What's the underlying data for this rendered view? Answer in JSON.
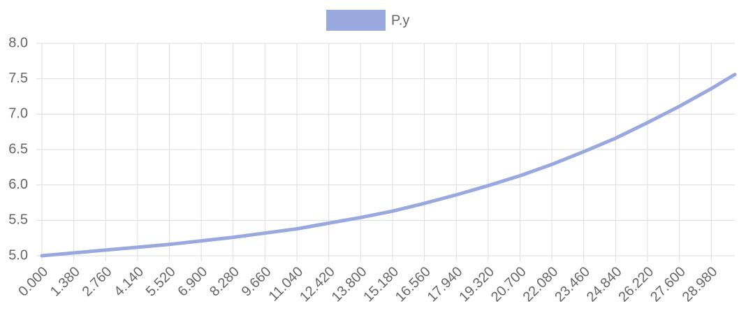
{
  "chart_data": {
    "type": "line",
    "x": [
      0,
      1.38,
      2.76,
      4.14,
      5.52,
      6.9,
      8.28,
      9.66,
      11.04,
      12.42,
      13.8,
      15.18,
      16.56,
      17.94,
      19.32,
      20.7,
      22.08,
      23.46,
      24.84,
      26.22,
      27.6,
      28.98,
      30
    ],
    "series": [
      {
        "name": "P.y",
        "color": "#99a9e0",
        "values": [
          5.0,
          5.04,
          5.08,
          5.12,
          5.16,
          5.21,
          5.26,
          5.32,
          5.38,
          5.46,
          5.54,
          5.63,
          5.74,
          5.86,
          5.99,
          6.13,
          6.29,
          6.47,
          6.66,
          6.88,
          7.11,
          7.36,
          7.56
        ]
      }
    ],
    "xlim": [
      0,
      30
    ],
    "ylim": [
      5,
      8
    ],
    "xticks": [
      {
        "value": 0,
        "label": "0.000"
      },
      {
        "value": 1.38,
        "label": "1.380"
      },
      {
        "value": 2.76,
        "label": "2.760"
      },
      {
        "value": 4.14,
        "label": "4.140"
      },
      {
        "value": 5.52,
        "label": "5.520"
      },
      {
        "value": 6.9,
        "label": "6.900"
      },
      {
        "value": 8.28,
        "label": "8.280"
      },
      {
        "value": 9.66,
        "label": "9.660"
      },
      {
        "value": 11.04,
        "label": "11.040"
      },
      {
        "value": 12.42,
        "label": "12.420"
      },
      {
        "value": 13.8,
        "label": "13.800"
      },
      {
        "value": 15.18,
        "label": "15.180"
      },
      {
        "value": 16.56,
        "label": "16.560"
      },
      {
        "value": 17.94,
        "label": "17.940"
      },
      {
        "value": 19.32,
        "label": "19.320"
      },
      {
        "value": 20.7,
        "label": "20.700"
      },
      {
        "value": 22.08,
        "label": "22.080"
      },
      {
        "value": 23.46,
        "label": "23.460"
      },
      {
        "value": 24.84,
        "label": "24.840"
      },
      {
        "value": 26.22,
        "label": "26.220"
      },
      {
        "value": 27.6,
        "label": "27.600"
      },
      {
        "value": 28.98,
        "label": "28.980"
      }
    ],
    "yticks": [
      {
        "value": 5,
        "label": "5.0"
      },
      {
        "value": 5.5,
        "label": "5.5"
      },
      {
        "value": 6,
        "label": "6.0"
      },
      {
        "value": 6.5,
        "label": "6.5"
      },
      {
        "value": 7,
        "label": "7.0"
      },
      {
        "value": 7.5,
        "label": "7.5"
      },
      {
        "value": 8,
        "label": "8.0"
      }
    ],
    "grid": true,
    "legend": "top"
  }
}
